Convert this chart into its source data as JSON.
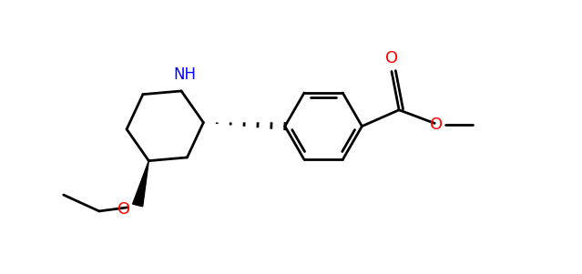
{
  "bg_color": "#ffffff",
  "bond_color": "#000000",
  "N_color": "#0000ff",
  "O_color": "#ff0000",
  "bond_width": 2.0,
  "figsize": [
    6.39,
    3.01
  ],
  "dpi": 100,
  "xlim": [
    0.2,
    6.8
  ],
  "ylim": [
    -1.5,
    2.2
  ]
}
